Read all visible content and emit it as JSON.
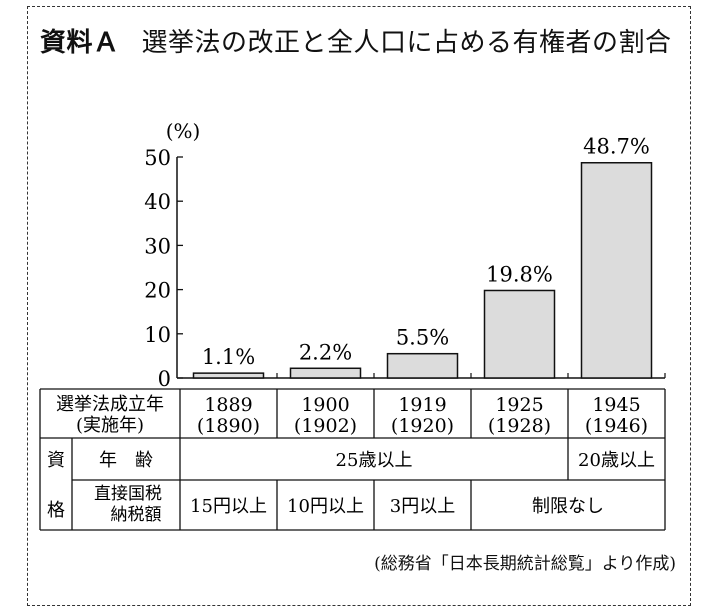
{
  "title": {
    "label": "資料Ａ",
    "text": "選挙法の改正と全人口に占める有権者の割合"
  },
  "chart_data": {
    "type": "bar",
    "ylabel": "(%)",
    "ylim": [
      0,
      50
    ],
    "yticks": [
      "0",
      "10",
      "20",
      "30",
      "40",
      "50"
    ],
    "categories": [
      "1889",
      "1900",
      "1919",
      "1925",
      "1945"
    ],
    "values": [
      1.1,
      2.2,
      5.5,
      19.8,
      48.7
    ],
    "data_labels": [
      "1.1%",
      "2.2%",
      "5.5%",
      "19.8%",
      "48.7%"
    ],
    "bar_color": "#dcdcdc"
  },
  "table": {
    "row_header_law": [
      "選挙法成立年",
      "(実施年)"
    ],
    "years": [
      [
        "1889",
        "(1890)"
      ],
      [
        "1900",
        "(1902)"
      ],
      [
        "1919",
        "(1920)"
      ],
      [
        "1925",
        "(1928)"
      ],
      [
        "1945",
        "(1946)"
      ]
    ],
    "qual_label": [
      "資",
      "格"
    ],
    "age_label": "年　齢",
    "age_values": [
      "25歳以上",
      "20歳以上"
    ],
    "tax_label": [
      "直接国税",
      "納税額"
    ],
    "tax_values": [
      "15円以上",
      "10円以上",
      "3円以上",
      "制限なし"
    ]
  },
  "source": "(総務省「日本長期統計総覧」より作成)"
}
